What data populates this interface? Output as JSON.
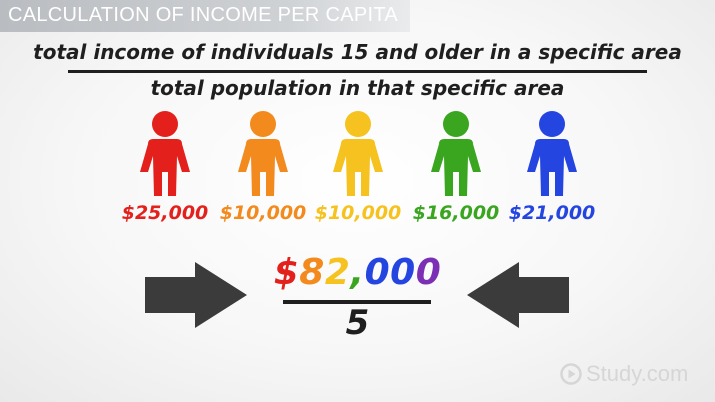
{
  "header": {
    "title": "CALCULATION OF INCOME PER CAPITA"
  },
  "formula": {
    "numerator": "total income of individuals 15 and older in a specific area",
    "denominator": "total population in that specific area"
  },
  "people": [
    {
      "amount": "$25,000",
      "color": "#e3201b"
    },
    {
      "amount": "$10,000",
      "color": "#f28a1e"
    },
    {
      "amount": "$10,000",
      "color": "#f5c21f"
    },
    {
      "amount": "$16,000",
      "color": "#3aa51f"
    },
    {
      "amount": "$21,000",
      "color": "#2445e0"
    }
  ],
  "result": {
    "total_chars": [
      {
        "ch": "$",
        "color": "#e3201b"
      },
      {
        "ch": "8",
        "color": "#f28a1e"
      },
      {
        "ch": "2",
        "color": "#f5c21f"
      },
      {
        "ch": ",",
        "color": "#3aa51f"
      },
      {
        "ch": "0",
        "color": "#2445e0"
      },
      {
        "ch": "0",
        "color": "#2445e0"
      },
      {
        "ch": "0",
        "color": "#7b2fb5"
      }
    ],
    "divisor": "5"
  },
  "arrows": {
    "color": "#3b3b3b"
  },
  "logo": {
    "text": "Study.com",
    "icon": "play-circle-icon"
  }
}
